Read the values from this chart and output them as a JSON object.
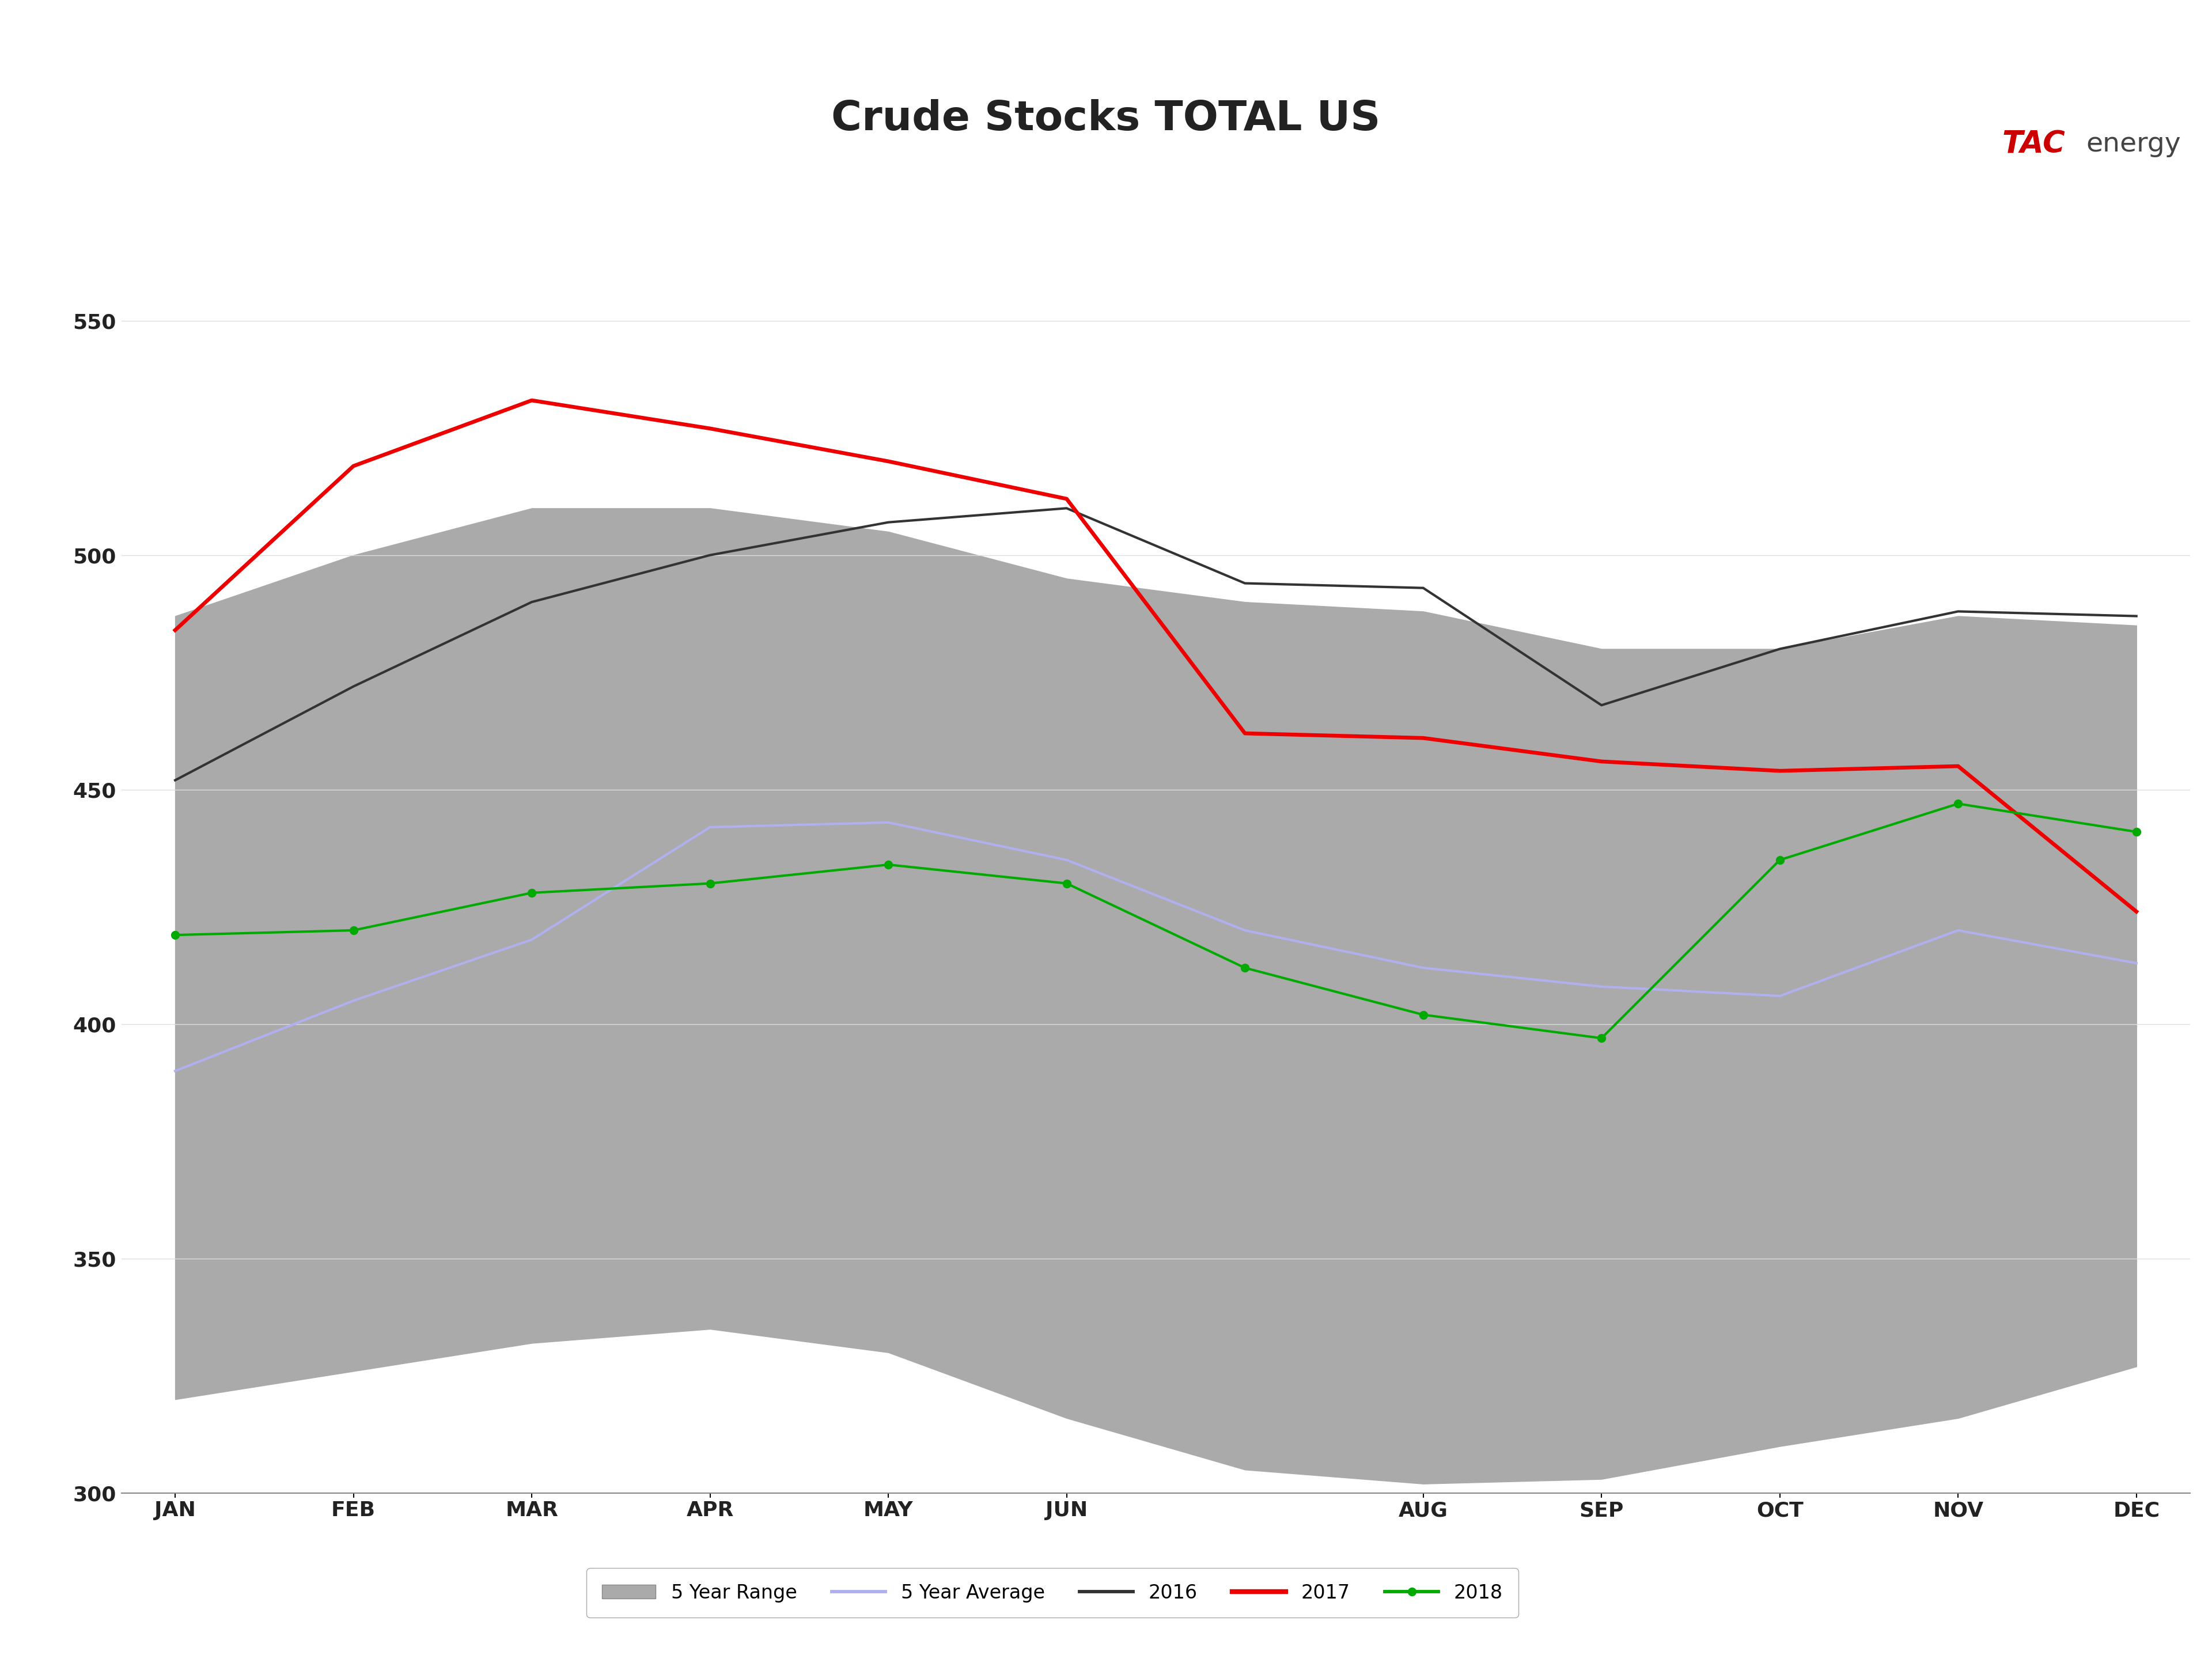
{
  "title": "Crude Stocks TOTAL US",
  "title_bg_color": "#b3b3b3",
  "blue_bar_color": "#1a5faa",
  "chart_bg": "#ffffff",
  "plot_bg": "#ffffff",
  "x_labels": [
    "JAN",
    "FEB",
    "MAR",
    "APR",
    "MAY",
    "JUN",
    "AUG",
    "SEP",
    "OCT",
    "NOV",
    "DEC"
  ],
  "x_positions": [
    0,
    1,
    2,
    3,
    4,
    5,
    7,
    8,
    9,
    10,
    11
  ],
  "ylim": [
    300,
    560
  ],
  "yticks": [
    300,
    350,
    400,
    450,
    500,
    550
  ],
  "five_year_range_upper": [
    487,
    500,
    510,
    510,
    505,
    495,
    490,
    488,
    480,
    480,
    487,
    485
  ],
  "five_year_range_lower": [
    320,
    326,
    332,
    335,
    330,
    316,
    305,
    302,
    303,
    310,
    316,
    327
  ],
  "five_year_avg": [
    390,
    405,
    418,
    442,
    443,
    435,
    420,
    412,
    408,
    406,
    420,
    413
  ],
  "data_2016": [
    452,
    472,
    490,
    500,
    507,
    510,
    494,
    493,
    468,
    480,
    488,
    487
  ],
  "data_2017": [
    484,
    519,
    533,
    527,
    520,
    512,
    462,
    461,
    456,
    454,
    455,
    424
  ],
  "data_2018": [
    419,
    420,
    428,
    430,
    434,
    430,
    412,
    402,
    397,
    435,
    447,
    441
  ],
  "x_data": [
    0,
    1,
    2,
    3,
    4,
    5,
    6,
    7,
    8,
    9,
    10,
    11
  ],
  "five_year_range_color": "#aaaaaa",
  "five_year_avg_color": "#b0b0ee",
  "color_2016": "#333333",
  "color_2017": "#ee0000",
  "color_2018": "#00aa00",
  "marker_2018": "o",
  "linewidth": 3.0,
  "tac_color": "#cc0000",
  "energy_color": "#444444"
}
